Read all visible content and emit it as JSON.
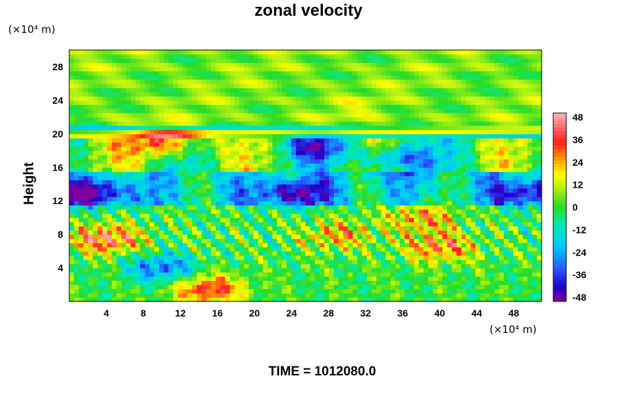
{
  "chart_data": {
    "type": "heatmap",
    "title": "zonal velocity",
    "xlabel": "",
    "ylabel": "Height",
    "x_unit": "(×10⁴ m)",
    "y_unit": "(×10⁴ m)",
    "x_ticks": [
      4,
      8,
      12,
      16,
      20,
      24,
      28,
      32,
      36,
      40,
      44,
      48
    ],
    "y_ticks": [
      4,
      8,
      12,
      16,
      20,
      24,
      28
    ],
    "xlim": [
      0,
      51
    ],
    "ylim": [
      0,
      30
    ],
    "colorbar": {
      "ticks": [
        48,
        36,
        24,
        12,
        0,
        -12,
        -24,
        -36,
        -48
      ],
      "range": [
        -52,
        52
      ]
    },
    "features": [
      {
        "x": 10.5,
        "y": 19,
        "value": 50
      },
      {
        "x": 4,
        "y": 7.5,
        "value": 50
      },
      {
        "x": 15,
        "y": 1.5,
        "value": 48
      },
      {
        "x": 29,
        "y": 8,
        "value": 30
      },
      {
        "x": 38,
        "y": 10,
        "value": 32
      },
      {
        "x": 40,
        "y": 6.5,
        "value": 40
      },
      {
        "x": 3,
        "y": 13,
        "value": -52
      },
      {
        "x": 24,
        "y": 13,
        "value": -50
      },
      {
        "x": 35,
        "y": 17,
        "value": -46
      },
      {
        "x": 50,
        "y": 13,
        "value": -50
      },
      {
        "x": 27,
        "y": 18.5,
        "value": -40
      },
      {
        "x": 10,
        "y": 4,
        "value": -40
      },
      {
        "x": 30,
        "y": 23,
        "value": 6
      }
    ],
    "annotation": "TIME = 1012080.0"
  }
}
